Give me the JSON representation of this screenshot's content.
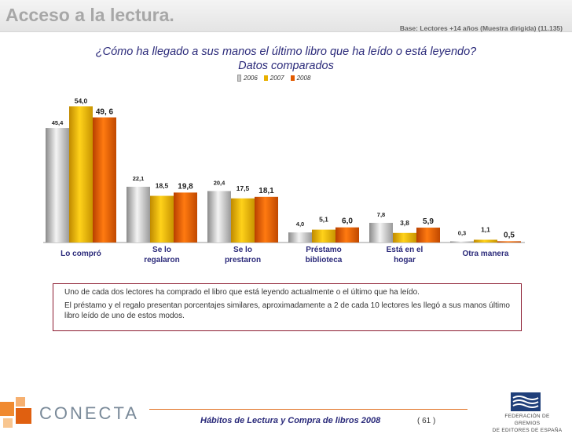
{
  "header": {
    "title": "Acceso a la lectura.",
    "base_note": "Base: Lectores +14 años (Muestra dirigida) (11.135)"
  },
  "question": {
    "line1": "¿Cómo ha llegado a sus manos el último libro que ha leído o está leyendo?",
    "line2": "Datos comparados"
  },
  "colors": {
    "2006": "#c8c8c8",
    "2007": "#e8b000",
    "2008": "#e25a00",
    "text_blue": "#2b2a7a",
    "accent_red": "#8b1a2f"
  },
  "chart_data": {
    "type": "bar",
    "title": "",
    "xlabel": "",
    "ylabel": "",
    "ylim": [
      0,
      56
    ],
    "grid": false,
    "legend_position": "top",
    "categories": [
      [
        "Lo compró"
      ],
      [
        "Se lo",
        "regalaron"
      ],
      [
        "Se lo",
        "prestaron"
      ],
      [
        "Préstamo",
        "biblioteca"
      ],
      [
        "Está en el",
        "hogar"
      ],
      [
        "Otra manera"
      ]
    ],
    "series": [
      {
        "name": "2006",
        "values": [
          45.4,
          22.1,
          20.4,
          4.0,
          7.8,
          0.3
        ],
        "labels": [
          "45,4",
          "22,1",
          "20,4",
          "4,0",
          "7,8",
          "0,3"
        ]
      },
      {
        "name": "2007",
        "values": [
          54.0,
          18.5,
          17.5,
          5.1,
          3.8,
          1.1
        ],
        "labels": [
          "54,0",
          "18,5",
          "17,5",
          "5,1",
          "3,8",
          "1,1"
        ]
      },
      {
        "name": "2008",
        "values": [
          49.6,
          19.8,
          18.1,
          6.0,
          5.9,
          0.5
        ],
        "labels": [
          "49, 6",
          "19,8",
          "18,1",
          "6,0",
          "5,9",
          "0,5"
        ]
      }
    ]
  },
  "summary": {
    "line1": "Uno de cada dos lectores ha comprado el libro que está leyendo actualmente o el último que ha leído.",
    "line2": "El préstamo y el regalo presentan porcentajes similares, aproximadamente a 2 de cada 10 lectores les llegó a sus manos último libro leído de uno de estos modos."
  },
  "footer": {
    "title": "Hábitos de Lectura y Compra de libros 2008",
    "page": "( 61 )",
    "brand": "CONECTA",
    "federation_line1": "FEDERACIÓN DE GREMIOS",
    "federation_line2": "DE EDITORES DE ESPAÑA"
  }
}
